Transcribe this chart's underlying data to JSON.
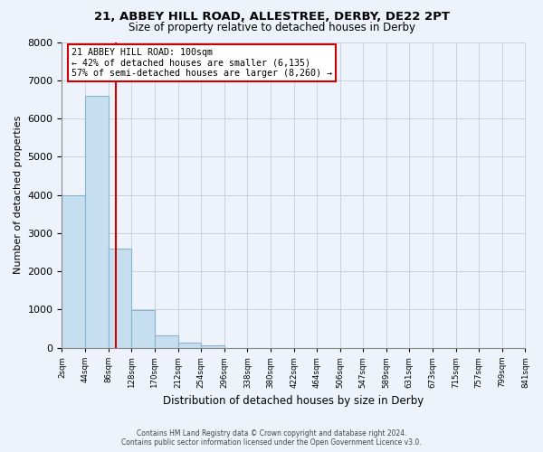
{
  "title": "21, ABBEY HILL ROAD, ALLESTREE, DERBY, DE22 2PT",
  "subtitle": "Size of property relative to detached houses in Derby",
  "xlabel": "Distribution of detached houses by size in Derby",
  "ylabel": "Number of detached properties",
  "bar_color": "#c5dff0",
  "bar_edge_color": "#8ab4cc",
  "background_color": "#eef2fa",
  "grid_color": "#c8d0e0",
  "bin_edges": [
    2,
    44,
    86,
    128,
    170,
    212,
    254,
    296,
    338,
    380,
    422,
    464,
    506,
    547,
    589,
    631,
    673,
    715,
    757,
    799,
    841
  ],
  "bar_heights": [
    4000,
    6600,
    2600,
    980,
    330,
    140,
    70,
    0,
    0,
    0,
    0,
    0,
    0,
    0,
    0,
    0,
    0,
    0,
    0,
    0
  ],
  "tick_labels": [
    "2sqm",
    "44sqm",
    "86sqm",
    "128sqm",
    "170sqm",
    "212sqm",
    "254sqm",
    "296sqm",
    "338sqm",
    "380sqm",
    "422sqm",
    "464sqm",
    "506sqm",
    "547sqm",
    "589sqm",
    "631sqm",
    "673sqm",
    "715sqm",
    "757sqm",
    "799sqm",
    "841sqm"
  ],
  "vline_x": 100,
  "vline_color": "#cc0000",
  "annotation_title": "21 ABBEY HILL ROAD: 100sqm",
  "annotation_line1": "← 42% of detached houses are smaller (6,135)",
  "annotation_line2": "57% of semi-detached houses are larger (8,260) →",
  "annotation_box_color": "#ffffff",
  "annotation_box_edge": "#cc0000",
  "ylim": [
    0,
    8000
  ],
  "yticks": [
    0,
    1000,
    2000,
    3000,
    4000,
    5000,
    6000,
    7000,
    8000
  ],
  "footer1": "Contains HM Land Registry data © Crown copyright and database right 2024.",
  "footer2": "Contains public sector information licensed under the Open Government Licence v3.0."
}
